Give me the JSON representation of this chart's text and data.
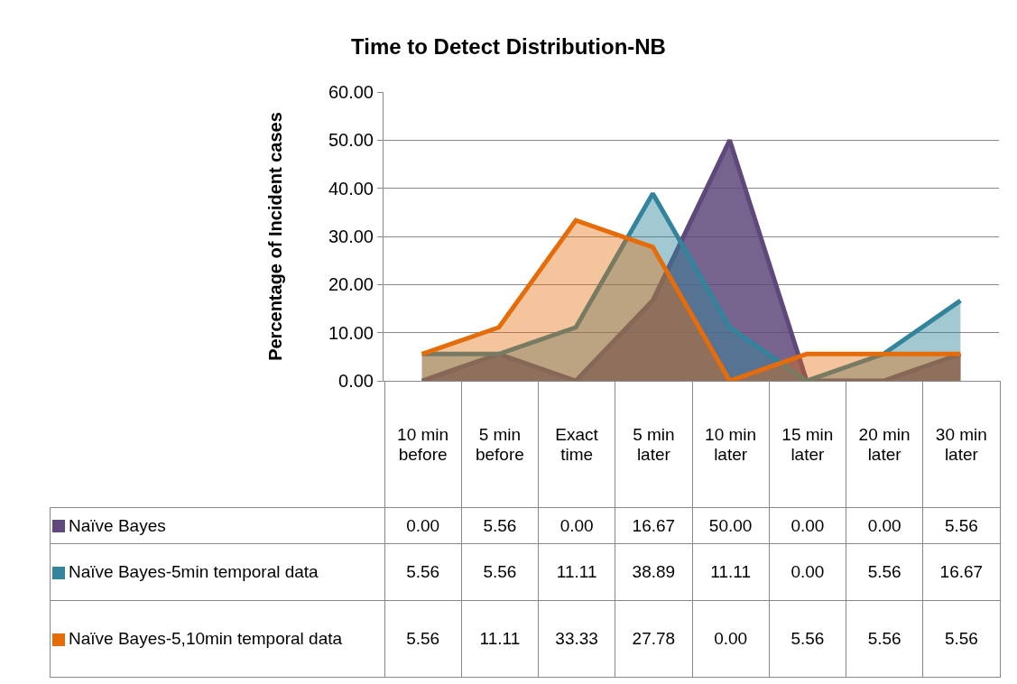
{
  "chart_data": {
    "type": "area",
    "title": "Time to Detect Distribution-NB",
    "ylabel": "Percentage of Incident cases",
    "categories": [
      "10 min before",
      "5 min before",
      "Exact time",
      "5 min later",
      "10 min later",
      "15 min later",
      "20 min later",
      "30 min later"
    ],
    "series": [
      {
        "name": "Naïve Bayes",
        "color": "#5f497a",
        "values": [
          0,
          5.56,
          0,
          16.67,
          50,
          0,
          0,
          5.56
        ],
        "value_labels": [
          "0.00",
          "5.56",
          "0.00",
          "16.67",
          "50.00",
          "0.00",
          "0.00",
          "5.56"
        ]
      },
      {
        "name": "Naïve Bayes-5min temporal data",
        "color": "#31849b",
        "values": [
          5.56,
          5.56,
          11.11,
          38.89,
          11.11,
          0,
          5.56,
          16.67
        ],
        "value_labels": [
          "5.56",
          "5.56",
          "11.11",
          "38.89",
          "11.11",
          "0.00",
          "5.56",
          "16.67"
        ]
      },
      {
        "name": "Naïve Bayes-5,10min temporal data",
        "color": "#e46c0a",
        "values": [
          5.56,
          11.11,
          33.33,
          27.78,
          0,
          5.56,
          5.56,
          5.56
        ],
        "value_labels": [
          "5.56",
          "11.11",
          "33.33",
          "27.78",
          "0.00",
          "5.56",
          "5.56",
          "5.56"
        ]
      }
    ],
    "ylim": [
      0,
      60
    ],
    "yticks": [
      {
        "value": 0,
        "label": "0.00"
      },
      {
        "value": 10,
        "label": "10.00"
      },
      {
        "value": 20,
        "label": "20.00"
      },
      {
        "value": 30,
        "label": "30.00"
      },
      {
        "value": 40,
        "label": "40.00"
      },
      {
        "value": 50,
        "label": "50.00"
      },
      {
        "value": 60,
        "label": "60.00"
      }
    ],
    "grid": "y",
    "legend": "bottom left"
  }
}
